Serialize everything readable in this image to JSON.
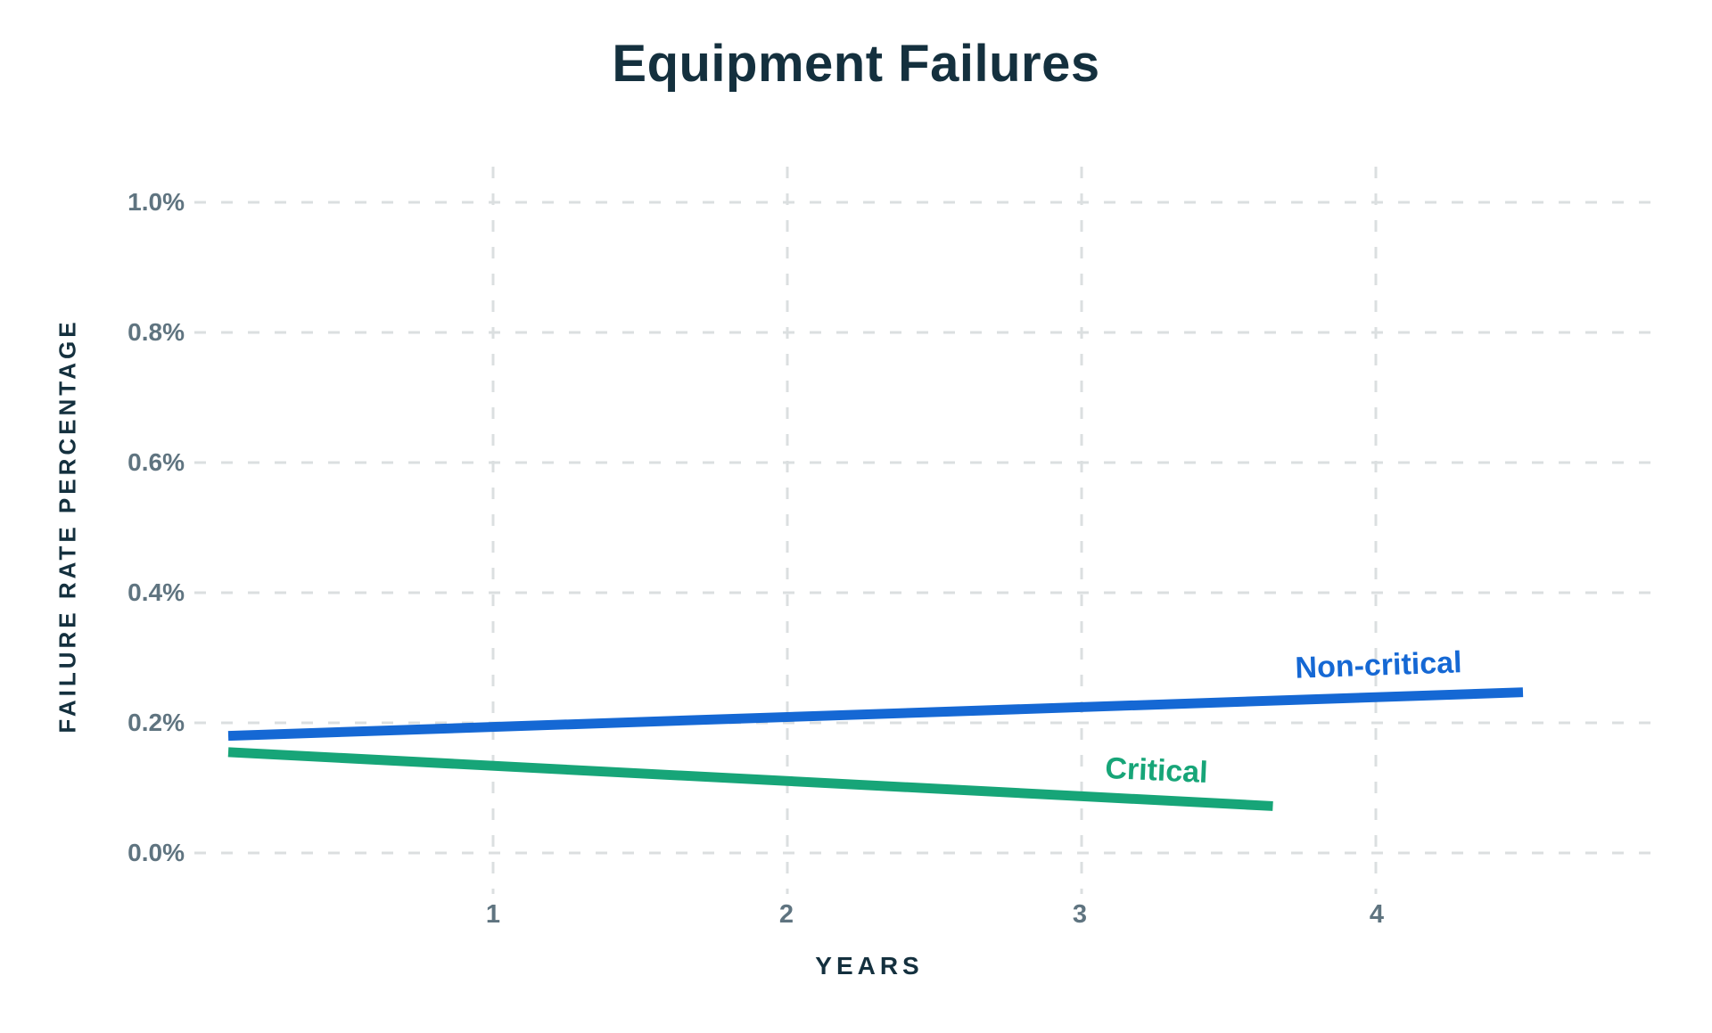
{
  "chart": {
    "title": "Equipment Failures",
    "x_axis_title": "YEARS",
    "y_axis_title": "FAILURE RATE PERCENTAGE"
  },
  "chart_data": {
    "type": "line",
    "title": "Equipment Failures",
    "xlabel": "YEARS",
    "ylabel": "FAILURE RATE PERCENTAGE",
    "xlim": [
      0,
      4.95
    ],
    "ylim": [
      0,
      1.05
    ],
    "x_ticks": [
      "1",
      "2",
      "3",
      "4"
    ],
    "x_tick_values": [
      1,
      2,
      3,
      4
    ],
    "y_ticks": [
      "0.0%",
      "0.2%",
      "0.4%",
      "0.6%",
      "0.8%",
      "1.0%"
    ],
    "y_tick_values": [
      0,
      0.2,
      0.4,
      0.6,
      0.8,
      1.0
    ],
    "grid": "dashed-both-axes",
    "legend": "inline-line-labels",
    "series": [
      {
        "name": "Non-critical",
        "color": "#1568d4",
        "x": [
          0.1,
          4.5
        ],
        "y_percent": [
          0.18,
          0.247
        ]
      },
      {
        "name": "Critical",
        "color": "#17a578",
        "x": [
          0.1,
          3.65
        ],
        "y_percent": [
          0.155,
          0.072
        ]
      }
    ],
    "colors": {
      "background": "#ffffff",
      "title_text": "#14303e",
      "tick_text": "#5f7480",
      "gridline": "#dbdfe0"
    }
  }
}
